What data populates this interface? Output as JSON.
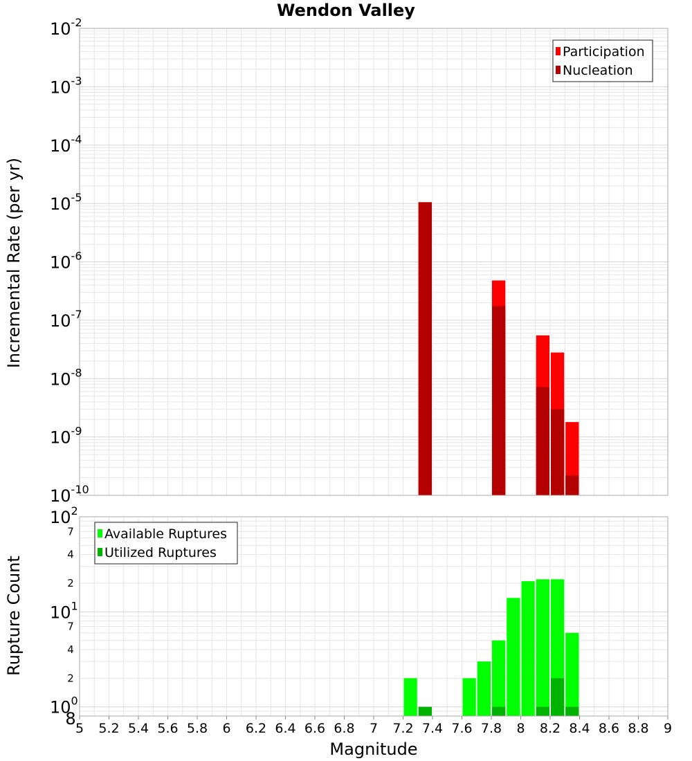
{
  "title": "Wendon Valley",
  "xlabel": "Magnitude",
  "x_ticks": [
    "5",
    "5.2",
    "5.4",
    "5.6",
    "5.8",
    "6",
    "6.2",
    "6.4",
    "6.6",
    "6.8",
    "7",
    "7.2",
    "7.4",
    "7.6",
    "7.8",
    "8",
    "8.2",
    "8.4",
    "8.6",
    "8.8",
    "9"
  ],
  "colors": {
    "participation": "#ff0000",
    "nucleation": "#b30000",
    "available": "#00ff00",
    "utilized": "#00b300",
    "grid": "#e6e6e6",
    "frame": "#aaaaaa"
  },
  "chart_data": [
    {
      "type": "bar",
      "ylabel": "Incremental Rate (per yr)",
      "y_scale": "log",
      "xlim": [
        5,
        9
      ],
      "ylim": [
        1e-10,
        0.01
      ],
      "y_tick_labels": [
        {
          "base": "10",
          "exp": "-10",
          "value": 1e-10
        },
        {
          "base": "10",
          "exp": "-9",
          "value": 1e-09
        },
        {
          "base": "10",
          "exp": "-8",
          "value": 1e-08
        },
        {
          "base": "10",
          "exp": "-7",
          "value": 1e-07
        },
        {
          "base": "10",
          "exp": "-6",
          "value": 1e-06
        },
        {
          "base": "10",
          "exp": "-5",
          "value": 1e-05
        },
        {
          "base": "10",
          "exp": "-4",
          "value": 0.0001
        },
        {
          "base": "10",
          "exp": "-3",
          "value": 0.001
        },
        {
          "base": "10",
          "exp": "-2",
          "value": 0.01
        }
      ],
      "legend": {
        "position": "top-right"
      },
      "series": [
        {
          "name": "Participation",
          "color": "#ff0000",
          "points": [
            {
              "x": 7.35,
              "y": 1.05e-05
            },
            {
              "x": 7.85,
              "y": 4.8e-07
            },
            {
              "x": 8.15,
              "y": 5.5e-08
            },
            {
              "x": 8.25,
              "y": 2.8e-08
            },
            {
              "x": 8.35,
              "y": 1.8e-09
            }
          ]
        },
        {
          "name": "Nucleation",
          "color": "#b30000",
          "points": [
            {
              "x": 7.35,
              "y": 1.05e-05
            },
            {
              "x": 7.85,
              "y": 1.75e-07
            },
            {
              "x": 8.15,
              "y": 7.2e-09
            },
            {
              "x": 8.25,
              "y": 3e-09
            },
            {
              "x": 8.35,
              "y": 2.2e-10
            }
          ]
        }
      ]
    },
    {
      "type": "bar",
      "ylabel": "Rupture Count",
      "y_scale": "log",
      "xlim": [
        5,
        9
      ],
      "ylim": [
        0.8,
        100
      ],
      "y_tick_labels": [
        {
          "base": "10",
          "exp": "0",
          "value": 1
        },
        {
          "base": "10",
          "exp": "1",
          "value": 10
        },
        {
          "base": "10",
          "exp": "2",
          "value": 100
        }
      ],
      "y_minor_tick_labels": [
        {
          "label": "8",
          "value": 0.8
        },
        {
          "label": "2",
          "value": 2
        },
        {
          "label": "4",
          "value": 4
        },
        {
          "label": "7",
          "value": 7
        },
        {
          "label": "2",
          "value": 20
        },
        {
          "label": "4",
          "value": 40
        },
        {
          "label": "7",
          "value": 70
        }
      ],
      "legend": {
        "position": "top-left"
      },
      "series": [
        {
          "name": "Available Ruptures",
          "color": "#00ff00",
          "points": [
            {
              "x": 7.25,
              "y": 2
            },
            {
              "x": 7.65,
              "y": 2
            },
            {
              "x": 7.75,
              "y": 3
            },
            {
              "x": 7.85,
              "y": 5
            },
            {
              "x": 7.95,
              "y": 14
            },
            {
              "x": 8.05,
              "y": 21
            },
            {
              "x": 8.15,
              "y": 22
            },
            {
              "x": 8.25,
              "y": 22
            },
            {
              "x": 8.35,
              "y": 6
            }
          ]
        },
        {
          "name": "Utilized Ruptures",
          "color": "#00b300",
          "points": [
            {
              "x": 7.35,
              "y": 1
            },
            {
              "x": 7.85,
              "y": 1
            },
            {
              "x": 8.15,
              "y": 1
            },
            {
              "x": 8.25,
              "y": 2
            },
            {
              "x": 8.35,
              "y": 1
            }
          ]
        }
      ]
    }
  ]
}
